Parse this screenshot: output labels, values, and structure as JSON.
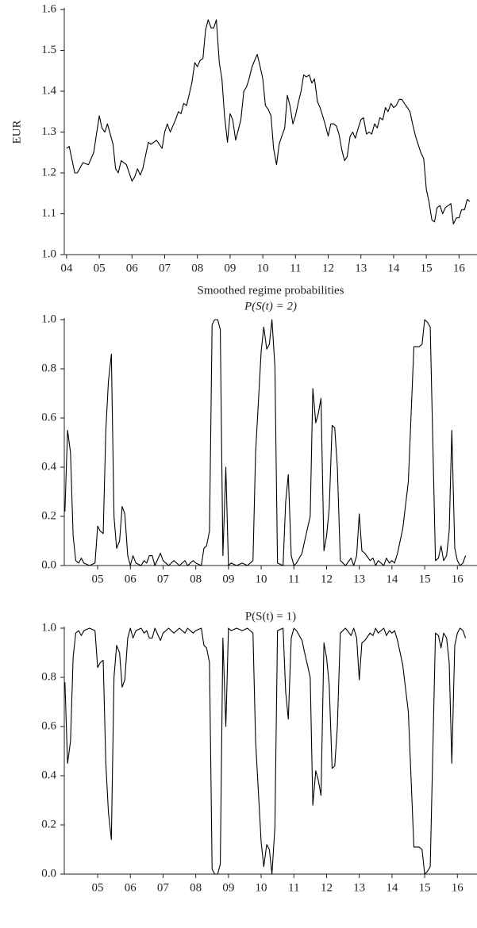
{
  "chart_data": [
    {
      "type": "line",
      "ylabel": "EUR",
      "color": "#000000",
      "x": [
        2004.0,
        2004.08,
        2004.25,
        2004.33,
        2004.5,
        2004.67,
        2004.83,
        2005.0,
        2005.08,
        2005.17,
        2005.25,
        2005.42,
        2005.5,
        2005.58,
        2005.67,
        2005.83,
        2006.0,
        2006.08,
        2006.17,
        2006.25,
        2006.33,
        2006.5,
        2006.58,
        2006.75,
        2006.92,
        2007.0,
        2007.08,
        2007.17,
        2007.33,
        2007.42,
        2007.5,
        2007.58,
        2007.67,
        2007.83,
        2007.92,
        2008.0,
        2008.08,
        2008.17,
        2008.25,
        2008.33,
        2008.42,
        2008.5,
        2008.58,
        2008.67,
        2008.75,
        2008.83,
        2008.92,
        2009.0,
        2009.08,
        2009.17,
        2009.25,
        2009.33,
        2009.42,
        2009.5,
        2009.58,
        2009.67,
        2009.83,
        2009.92,
        2010.0,
        2010.08,
        2010.17,
        2010.25,
        2010.33,
        2010.42,
        2010.5,
        2010.58,
        2010.67,
        2010.75,
        2010.83,
        2010.92,
        2011.0,
        2011.08,
        2011.17,
        2011.25,
        2011.33,
        2011.42,
        2011.5,
        2011.58,
        2011.67,
        2011.75,
        2011.83,
        2011.92,
        2012.0,
        2012.08,
        2012.17,
        2012.25,
        2012.33,
        2012.42,
        2012.5,
        2012.58,
        2012.67,
        2012.75,
        2012.83,
        2012.92,
        2013.0,
        2013.08,
        2013.17,
        2013.25,
        2013.33,
        2013.42,
        2013.5,
        2013.58,
        2013.67,
        2013.75,
        2013.83,
        2013.92,
        2014.0,
        2014.08,
        2014.17,
        2014.25,
        2014.33,
        2014.42,
        2014.5,
        2014.58,
        2014.67,
        2014.75,
        2014.83,
        2014.92,
        2015.0,
        2015.08,
        2015.17,
        2015.25,
        2015.33,
        2015.42,
        2015.5,
        2015.58,
        2015.67,
        2015.75,
        2015.83,
        2015.92,
        2016.0,
        2016.08,
        2016.17,
        2016.25,
        2016.33
      ],
      "values": [
        1.26,
        1.265,
        1.2,
        1.2,
        1.225,
        1.22,
        1.25,
        1.34,
        1.31,
        1.3,
        1.32,
        1.27,
        1.21,
        1.2,
        1.23,
        1.22,
        1.18,
        1.19,
        1.21,
        1.195,
        1.21,
        1.275,
        1.27,
        1.28,
        1.26,
        1.3,
        1.32,
        1.3,
        1.33,
        1.35,
        1.345,
        1.37,
        1.365,
        1.42,
        1.47,
        1.46,
        1.475,
        1.48,
        1.55,
        1.575,
        1.555,
        1.555,
        1.575,
        1.47,
        1.43,
        1.34,
        1.275,
        1.345,
        1.33,
        1.28,
        1.305,
        1.33,
        1.4,
        1.41,
        1.43,
        1.46,
        1.49,
        1.46,
        1.43,
        1.365,
        1.355,
        1.34,
        1.26,
        1.22,
        1.27,
        1.29,
        1.31,
        1.39,
        1.365,
        1.32,
        1.34,
        1.37,
        1.4,
        1.44,
        1.435,
        1.44,
        1.42,
        1.43,
        1.375,
        1.36,
        1.34,
        1.315,
        1.29,
        1.32,
        1.32,
        1.315,
        1.295,
        1.255,
        1.23,
        1.24,
        1.29,
        1.3,
        1.285,
        1.31,
        1.33,
        1.335,
        1.295,
        1.3,
        1.295,
        1.32,
        1.31,
        1.335,
        1.33,
        1.36,
        1.35,
        1.37,
        1.36,
        1.365,
        1.38,
        1.38,
        1.37,
        1.36,
        1.35,
        1.32,
        1.29,
        1.27,
        1.25,
        1.235,
        1.16,
        1.13,
        1.085,
        1.08,
        1.115,
        1.12,
        1.1,
        1.115,
        1.12,
        1.125,
        1.075,
        1.09,
        1.09,
        1.11,
        1.11,
        1.135,
        1.13
      ],
      "xlim": [
        2003.93,
        2016.55
      ],
      "ylim": [
        1.0,
        1.6
      ],
      "xticks": [
        {
          "value": 2004,
          "label": "04"
        },
        {
          "value": 2005,
          "label": "05"
        },
        {
          "value": 2006,
          "label": "06"
        },
        {
          "value": 2007,
          "label": "07"
        },
        {
          "value": 2008,
          "label": "08"
        },
        {
          "value": 2009,
          "label": "09"
        },
        {
          "value": 2010,
          "label": "10"
        },
        {
          "value": 2011,
          "label": "11"
        },
        {
          "value": 2012,
          "label": "12"
        },
        {
          "value": 2013,
          "label": "13"
        },
        {
          "value": 2014,
          "label": "14"
        },
        {
          "value": 2015,
          "label": "15"
        },
        {
          "value": 2016,
          "label": "16"
        }
      ],
      "yticks": [
        {
          "value": 1.0,
          "label": "1.0"
        },
        1.1,
        1.2,
        1.3,
        1.4,
        1.5,
        1.6
      ]
    },
    {
      "type": "line",
      "title": "Smoothed regime probabilities",
      "subtitle": "P(S(t) = 2)",
      "color": "#000000",
      "x": [
        2004.0,
        2004.08,
        2004.17,
        2004.25,
        2004.33,
        2004.42,
        2004.5,
        2004.58,
        2004.75,
        2004.92,
        2005.0,
        2005.08,
        2005.17,
        2005.25,
        2005.33,
        2005.42,
        2005.5,
        2005.58,
        2005.67,
        2005.75,
        2005.83,
        2005.92,
        2006.0,
        2006.08,
        2006.17,
        2006.33,
        2006.42,
        2006.5,
        2006.58,
        2006.67,
        2006.75,
        2006.92,
        2007.0,
        2007.17,
        2007.33,
        2007.5,
        2007.67,
        2007.75,
        2007.92,
        2008.0,
        2008.17,
        2008.25,
        2008.33,
        2008.42,
        2008.5,
        2008.58,
        2008.67,
        2008.75,
        2008.83,
        2008.92,
        2009.0,
        2009.08,
        2009.25,
        2009.42,
        2009.58,
        2009.75,
        2009.83,
        2010.0,
        2010.08,
        2010.17,
        2010.25,
        2010.33,
        2010.42,
        2010.5,
        2010.67,
        2010.75,
        2010.83,
        2010.92,
        2011.0,
        2011.08,
        2011.25,
        2011.33,
        2011.5,
        2011.58,
        2011.67,
        2011.75,
        2011.83,
        2011.92,
        2012.0,
        2012.08,
        2012.17,
        2012.25,
        2012.33,
        2012.42,
        2012.58,
        2012.75,
        2012.83,
        2012.92,
        2013.0,
        2013.08,
        2013.17,
        2013.33,
        2013.42,
        2013.5,
        2013.58,
        2013.75,
        2013.83,
        2013.92,
        2014.0,
        2014.08,
        2014.17,
        2014.33,
        2014.5,
        2014.67,
        2014.83,
        2014.92,
        2015.0,
        2015.08,
        2015.17,
        2015.33,
        2015.42,
        2015.5,
        2015.58,
        2015.67,
        2015.75,
        2015.83,
        2015.92,
        2016.0,
        2016.08,
        2016.17,
        2016.25
      ],
      "values": [
        0.22,
        0.55,
        0.46,
        0.12,
        0.02,
        0.01,
        0.03,
        0.01,
        0.0,
        0.01,
        0.16,
        0.14,
        0.13,
        0.55,
        0.75,
        0.86,
        0.2,
        0.07,
        0.1,
        0.24,
        0.21,
        0.04,
        0.0,
        0.04,
        0.01,
        0.0,
        0.02,
        0.01,
        0.04,
        0.04,
        0.0,
        0.05,
        0.02,
        0.0,
        0.02,
        0.0,
        0.02,
        0.0,
        0.02,
        0.01,
        0.0,
        0.07,
        0.08,
        0.14,
        0.98,
        1.0,
        1.0,
        0.96,
        0.04,
        0.4,
        0.0,
        0.01,
        0.0,
        0.01,
        0.0,
        0.02,
        0.46,
        0.87,
        0.97,
        0.88,
        0.9,
        1.0,
        0.81,
        0.01,
        0.0,
        0.26,
        0.37,
        0.04,
        0.0,
        0.01,
        0.05,
        0.1,
        0.2,
        0.72,
        0.58,
        0.62,
        0.68,
        0.06,
        0.12,
        0.23,
        0.57,
        0.56,
        0.4,
        0.02,
        0.0,
        0.03,
        0.0,
        0.04,
        0.21,
        0.06,
        0.05,
        0.02,
        0.03,
        0.0,
        0.02,
        0.0,
        0.03,
        0.01,
        0.02,
        0.01,
        0.05,
        0.15,
        0.34,
        0.89,
        0.89,
        0.9,
        1.0,
        0.99,
        0.97,
        0.02,
        0.03,
        0.08,
        0.02,
        0.04,
        0.14,
        0.55,
        0.07,
        0.02,
        0.0,
        0.01,
        0.04
      ],
      "xlim": [
        2003.98,
        2016.6
      ],
      "ylim": [
        0.0,
        1.0
      ],
      "xticks": [
        {
          "value": 2005,
          "label": "05"
        },
        {
          "value": 2006,
          "label": "06"
        },
        {
          "value": 2007,
          "label": "07"
        },
        {
          "value": 2008,
          "label": "08"
        },
        {
          "value": 2009,
          "label": "09"
        },
        {
          "value": 2010,
          "label": "10"
        },
        {
          "value": 2011,
          "label": "11"
        },
        {
          "value": 2012,
          "label": "12"
        },
        {
          "value": 2013,
          "label": "13"
        },
        {
          "value": 2014,
          "label": "14"
        },
        {
          "value": 2015,
          "label": "15"
        },
        {
          "value": 2016,
          "label": "16"
        }
      ],
      "yticks": [
        {
          "value": 0,
          "label": "0.0"
        },
        0.2,
        0.4,
        0.6,
        0.8,
        {
          "value": 1,
          "label": "1.0"
        }
      ]
    },
    {
      "type": "line",
      "title": "P(S(t) = 1)",
      "color": "#000000",
      "x": [
        2004.0,
        2004.08,
        2004.17,
        2004.25,
        2004.33,
        2004.42,
        2004.5,
        2004.58,
        2004.75,
        2004.92,
        2005.0,
        2005.08,
        2005.17,
        2005.25,
        2005.33,
        2005.42,
        2005.5,
        2005.58,
        2005.67,
        2005.75,
        2005.83,
        2005.92,
        2006.0,
        2006.08,
        2006.17,
        2006.33,
        2006.42,
        2006.5,
        2006.58,
        2006.67,
        2006.75,
        2006.92,
        2007.0,
        2007.17,
        2007.33,
        2007.5,
        2007.67,
        2007.75,
        2007.92,
        2008.0,
        2008.17,
        2008.25,
        2008.33,
        2008.42,
        2008.5,
        2008.58,
        2008.67,
        2008.75,
        2008.83,
        2008.92,
        2009.0,
        2009.08,
        2009.25,
        2009.42,
        2009.58,
        2009.75,
        2009.83,
        2010.0,
        2010.08,
        2010.17,
        2010.25,
        2010.33,
        2010.42,
        2010.5,
        2010.67,
        2010.75,
        2010.83,
        2010.92,
        2011.0,
        2011.08,
        2011.25,
        2011.33,
        2011.5,
        2011.58,
        2011.67,
        2011.75,
        2011.83,
        2011.92,
        2012.0,
        2012.08,
        2012.17,
        2012.25,
        2012.33,
        2012.42,
        2012.58,
        2012.75,
        2012.83,
        2012.92,
        2013.0,
        2013.08,
        2013.17,
        2013.33,
        2013.42,
        2013.5,
        2013.58,
        2013.75,
        2013.83,
        2013.92,
        2014.0,
        2014.08,
        2014.17,
        2014.33,
        2014.5,
        2014.67,
        2014.83,
        2014.92,
        2015.0,
        2015.08,
        2015.17,
        2015.33,
        2015.42,
        2015.5,
        2015.58,
        2015.67,
        2015.75,
        2015.83,
        2015.92,
        2016.0,
        2016.08,
        2016.17,
        2016.25
      ],
      "values": [
        0.78,
        0.45,
        0.54,
        0.88,
        0.98,
        0.99,
        0.97,
        0.99,
        1.0,
        0.99,
        0.84,
        0.86,
        0.87,
        0.45,
        0.25,
        0.14,
        0.8,
        0.93,
        0.9,
        0.76,
        0.79,
        0.96,
        1.0,
        0.96,
        0.99,
        1.0,
        0.98,
        0.99,
        0.96,
        0.96,
        1.0,
        0.95,
        0.98,
        1.0,
        0.98,
        1.0,
        0.98,
        1.0,
        0.98,
        0.99,
        1.0,
        0.93,
        0.92,
        0.86,
        0.02,
        0.0,
        0.0,
        0.04,
        0.96,
        0.6,
        1.0,
        0.99,
        1.0,
        0.99,
        1.0,
        0.98,
        0.54,
        0.13,
        0.03,
        0.12,
        0.1,
        0.0,
        0.19,
        0.99,
        1.0,
        0.74,
        0.63,
        0.96,
        1.0,
        0.99,
        0.95,
        0.9,
        0.8,
        0.28,
        0.42,
        0.38,
        0.32,
        0.94,
        0.88,
        0.77,
        0.43,
        0.44,
        0.6,
        0.98,
        1.0,
        0.97,
        1.0,
        0.96,
        0.79,
        0.94,
        0.95,
        0.98,
        0.97,
        1.0,
        0.98,
        1.0,
        0.97,
        0.99,
        0.98,
        0.99,
        0.95,
        0.85,
        0.66,
        0.11,
        0.11,
        0.1,
        0.0,
        0.01,
        0.03,
        0.98,
        0.97,
        0.92,
        0.98,
        0.96,
        0.86,
        0.45,
        0.93,
        0.98,
        1.0,
        0.99,
        0.96
      ],
      "xlim": [
        2003.98,
        2016.6
      ],
      "ylim": [
        0.0,
        1.0
      ],
      "xticks": [
        {
          "value": 2005,
          "label": "05"
        },
        {
          "value": 2006,
          "label": "06"
        },
        {
          "value": 2007,
          "label": "07"
        },
        {
          "value": 2008,
          "label": "08"
        },
        {
          "value": 2009,
          "label": "09"
        },
        {
          "value": 2010,
          "label": "10"
        },
        {
          "value": 2011,
          "label": "11"
        },
        {
          "value": 2012,
          "label": "12"
        },
        {
          "value": 2013,
          "label": "13"
        },
        {
          "value": 2014,
          "label": "14"
        },
        {
          "value": 2015,
          "label": "15"
        },
        {
          "value": 2016,
          "label": "16"
        }
      ],
      "yticks": [
        {
          "value": 0,
          "label": "0.0"
        },
        0.2,
        0.4,
        0.6,
        0.8,
        {
          "value": 1,
          "label": "1.0"
        }
      ]
    }
  ]
}
